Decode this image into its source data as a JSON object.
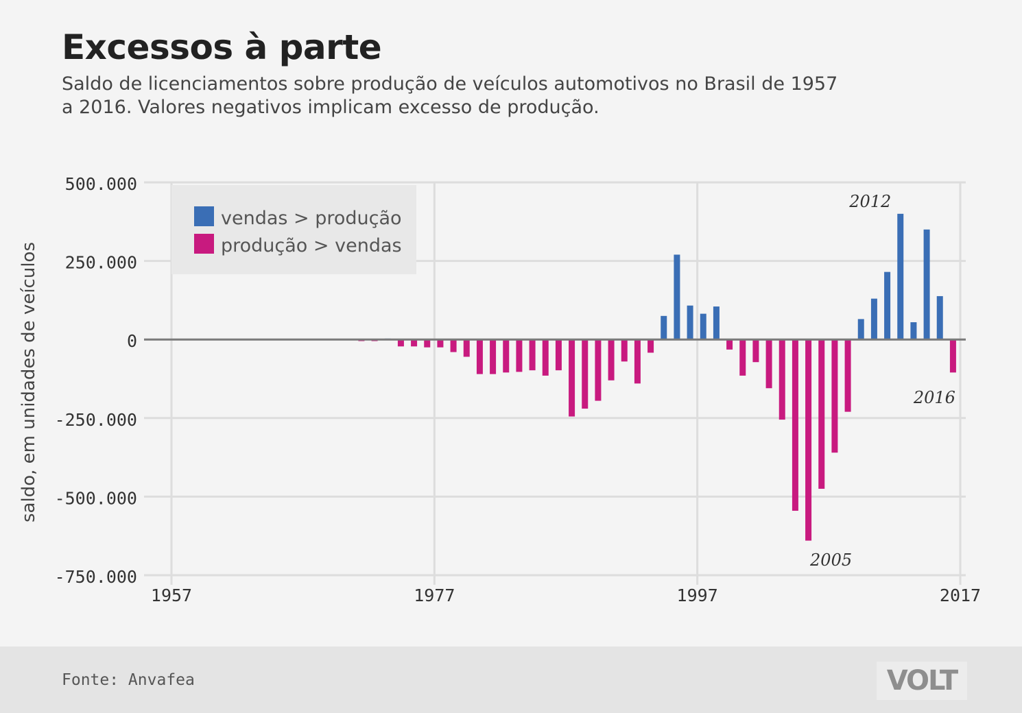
{
  "header": {
    "title": "Excessos à parte",
    "subtitle": "Saldo de licenciamentos sobre produção de veículos automotivos no Brasil de 1957 a 2016. Valores negativos implicam excesso de produção."
  },
  "footer": {
    "source": "Fonte: Anvafea",
    "logo_text": "VOLT"
  },
  "colors": {
    "positive": "#3a6eb5",
    "negative": "#c81a7f",
    "grid": "#dddddd",
    "zero_line": "#7a7a7a",
    "legend_bg": "#e8e8e8"
  },
  "chart_data": {
    "type": "bar",
    "ylabel": "saldo, em unidades de veículos",
    "xlim": [
      1957,
      2017
    ],
    "ylim": [
      -750000,
      500000
    ],
    "yticks": [
      500000,
      250000,
      0,
      -250000,
      -500000,
      -750000
    ],
    "ytick_labels": [
      "500.000",
      "250.000",
      "0",
      "-250.000",
      "-500.000",
      "-750.000"
    ],
    "xticks": [
      1957,
      1977,
      1997,
      2017
    ],
    "xtick_labels": [
      "1957",
      "1977",
      "1997",
      "2017"
    ],
    "grid": true,
    "legend_position": "top-left",
    "legend": [
      {
        "label": "vendas > produção",
        "color": "#3a6eb5"
      },
      {
        "label": "produção > vendas",
        "color": "#c81a7f"
      }
    ],
    "annotations": [
      {
        "label": "2012",
        "year": 2012
      },
      {
        "label": "2005",
        "year": 2005
      },
      {
        "label": "2016",
        "year": 2016
      }
    ],
    "x": [
      1957,
      1958,
      1959,
      1960,
      1961,
      1962,
      1963,
      1964,
      1965,
      1966,
      1967,
      1968,
      1969,
      1970,
      1971,
      1972,
      1973,
      1974,
      1975,
      1976,
      1977,
      1978,
      1979,
      1980,
      1981,
      1982,
      1983,
      1984,
      1985,
      1986,
      1987,
      1988,
      1989,
      1990,
      1991,
      1992,
      1993,
      1994,
      1995,
      1996,
      1997,
      1998,
      1999,
      2000,
      2001,
      2002,
      2003,
      2004,
      2005,
      2006,
      2007,
      2008,
      2009,
      2010,
      2011,
      2012,
      2013,
      2014,
      2015,
      2016
    ],
    "values": [
      0,
      0,
      0,
      0,
      0,
      0,
      0,
      0,
      0,
      0,
      0,
      0,
      0,
      0,
      -5000,
      -5000,
      3000,
      -22000,
      -22000,
      -25000,
      -25000,
      -40000,
      -55000,
      -110000,
      -110000,
      -105000,
      -103000,
      -98000,
      -115000,
      -98000,
      -245000,
      -220000,
      -195000,
      -130000,
      -70000,
      -140000,
      -42000,
      75000,
      270000,
      108000,
      82000,
      105000,
      -32000,
      -115000,
      -72000,
      -155000,
      -255000,
      -545000,
      -640000,
      -475000,
      -360000,
      -230000,
      65000,
      130000,
      215000,
      400000,
      55000,
      350000,
      138000,
      -105000
    ]
  }
}
